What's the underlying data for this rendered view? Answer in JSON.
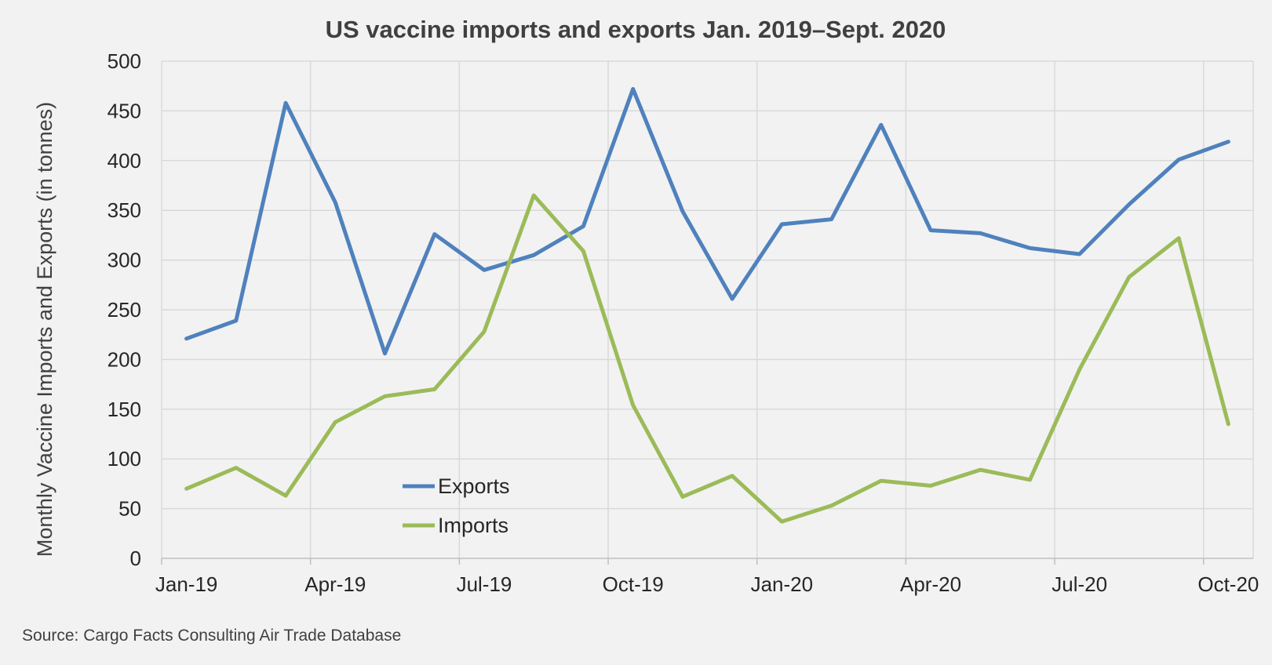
{
  "chart_data": {
    "type": "line",
    "title": "US vaccine imports and exports Jan. 2019–Sept. 2020",
    "ylabel": "Monthly Vaccine Imports and Exports (in tonnes)",
    "xlabel": "",
    "x": [
      "2019-01",
      "2019-02",
      "2019-03",
      "2019-04",
      "2019-05",
      "2019-06",
      "2019-07",
      "2019-08",
      "2019-09",
      "2019-10",
      "2019-11",
      "2019-12",
      "2020-01",
      "2020-02",
      "2020-03",
      "2020-04",
      "2020-05",
      "2020-06",
      "2020-07",
      "2020-08",
      "2020-09",
      "2020-10"
    ],
    "xticks": [
      {
        "x": "2019-01",
        "label": "Jan-19"
      },
      {
        "x": "2019-04",
        "label": "Apr-19"
      },
      {
        "x": "2019-07",
        "label": "Jul-19"
      },
      {
        "x": "2019-10",
        "label": "Oct-19"
      },
      {
        "x": "2020-01",
        "label": "Jan-20"
      },
      {
        "x": "2020-04",
        "label": "Apr-20"
      },
      {
        "x": "2020-07",
        "label": "Jul-20"
      },
      {
        "x": "2020-10",
        "label": "Oct-20"
      }
    ],
    "yticks": [
      0,
      50,
      100,
      150,
      200,
      250,
      300,
      350,
      400,
      450,
      500
    ],
    "ylim": [
      0,
      500
    ],
    "grid": true,
    "legend": "inside-bottom-left",
    "series": [
      {
        "name": "Exports",
        "color": "#4f81bd",
        "values": [
          221,
          239,
          458,
          358,
          206,
          326,
          290,
          305,
          334,
          472,
          349,
          261,
          336,
          341,
          436,
          330,
          327,
          312,
          306,
          356,
          401,
          419
        ]
      },
      {
        "name": "Imports",
        "color": "#9bbb59",
        "values": [
          70,
          91,
          63,
          137,
          163,
          170,
          228,
          365,
          309,
          154,
          62,
          83,
          37,
          53,
          78,
          73,
          89,
          79,
          190,
          283,
          322,
          135
        ]
      }
    ],
    "source": "Source:  Cargo Facts Consulting Air Trade Database"
  }
}
